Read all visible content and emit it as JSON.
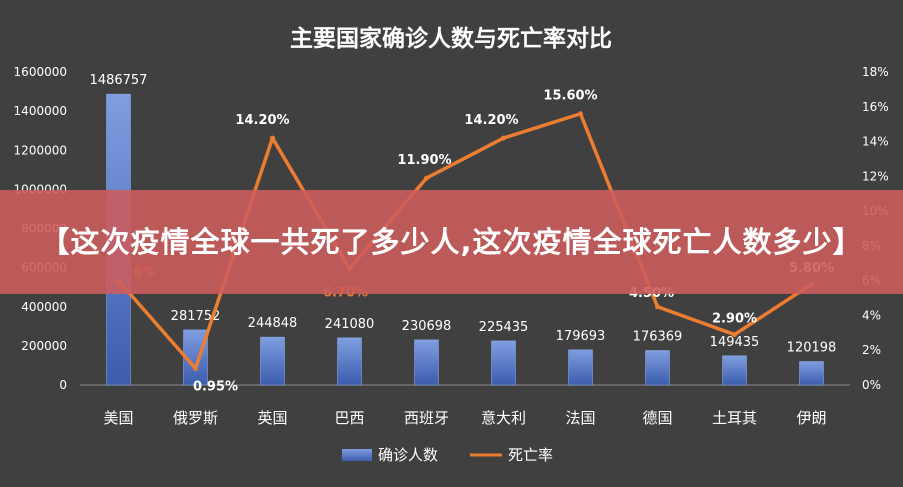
{
  "banner": {
    "text": "【这次疫情全球一共死了多少人,这次疫情全球死亡人数多少】"
  },
  "colors": {
    "background": "#404040",
    "bar": "#4f72c4",
    "line": "#ed7d31",
    "text": "#ffffff",
    "banner": "#cd5c5c"
  },
  "chart_data": {
    "type": "bar",
    "title": "主要国家确诊人数与死亡率对比",
    "categories": [
      "美国",
      "俄罗斯",
      "英国",
      "巴西",
      "西班牙",
      "意大利",
      "法国",
      "德国",
      "土耳其",
      "伊朗"
    ],
    "series": [
      {
        "name": "确诊人数",
        "type": "bar",
        "axis": "left",
        "values": [
          1486757,
          281752,
          244848,
          241080,
          230698,
          225435,
          179693,
          176369,
          149435,
          120198
        ],
        "labels": [
          "1486757",
          "281752",
          "244848",
          "241080",
          "230698",
          "225435",
          "179693",
          "176369",
          "149435",
          "120198"
        ]
      },
      {
        "name": "死亡率",
        "type": "line",
        "axis": "right",
        "values": [
          6,
          0.95,
          14.2,
          6.7,
          11.9,
          14.2,
          15.6,
          4.5,
          2.9,
          5.8
        ],
        "labels": [
          "6%",
          "0.95%",
          "14.20%",
          "6.70%",
          "11.90%",
          "14.20%",
          "15.60%",
          "4.50%",
          "2.90%",
          "5.80%"
        ]
      }
    ],
    "y_left": {
      "min": 0,
      "max": 1600000,
      "ticks": [
        "0",
        "200000",
        "400000",
        "600000",
        "800000",
        "1000000",
        "1200000",
        "1400000",
        "1600000"
      ]
    },
    "y_right": {
      "min": 0,
      "max": 18,
      "ticks": [
        "0%",
        "2%",
        "4%",
        "6%",
        "8%",
        "10%",
        "12%",
        "14%",
        "16%",
        "18%"
      ]
    },
    "legend_position": "bottom",
    "grid": false
  }
}
